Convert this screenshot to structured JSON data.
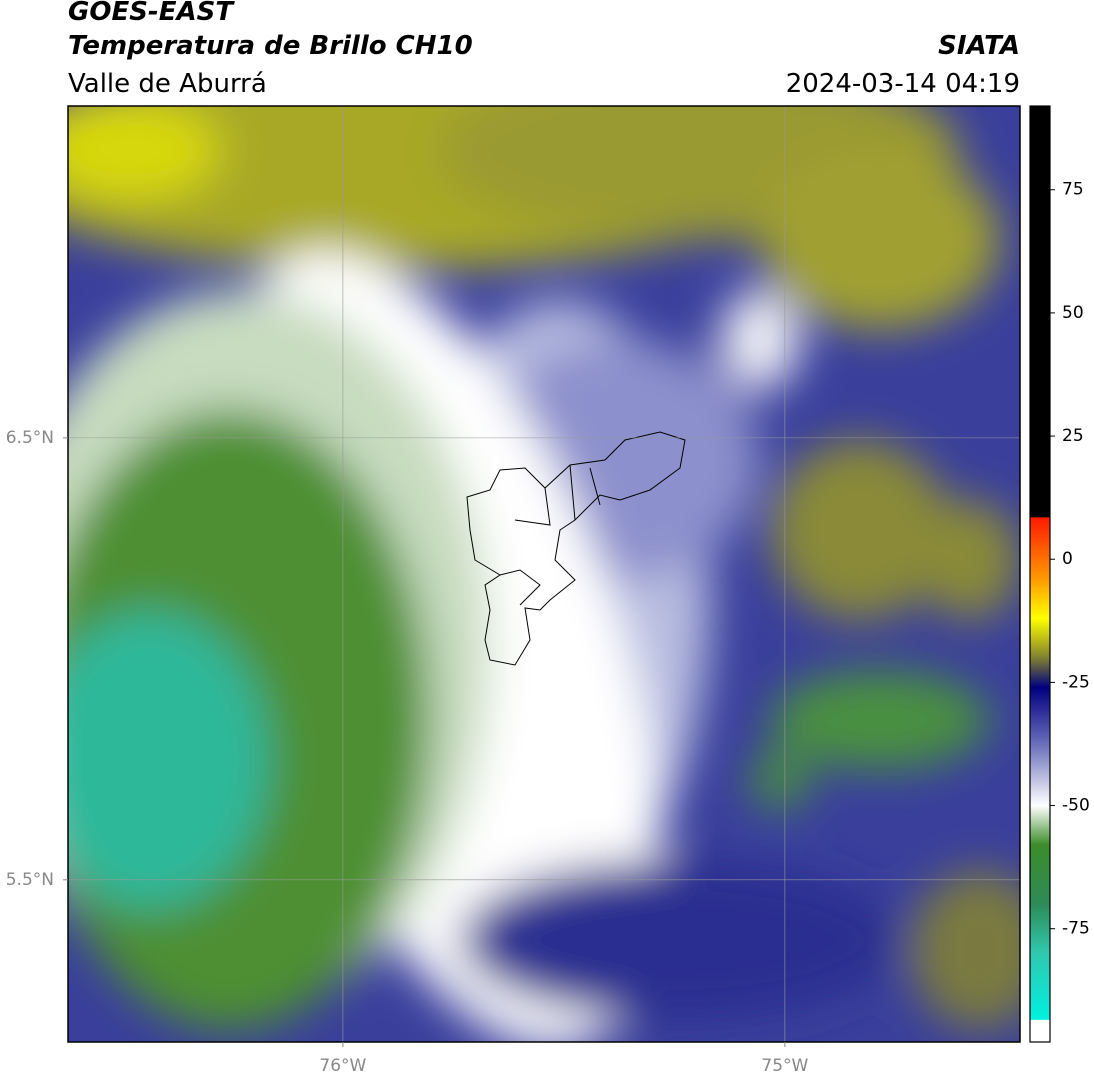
{
  "header": {
    "title": "GOES-EAST",
    "subtitle": "Temperatura de Brillo CH10",
    "region": "Valle de Aburrá",
    "source": "SIATA",
    "datetime": "2024-03-14 04:19"
  },
  "map": {
    "xlim": [
      -76.622,
      -74.468
    ],
    "ylim": [
      5.133,
      7.251
    ],
    "xticks": [
      {
        "value": -76,
        "label": "76°W"
      },
      {
        "value": -75,
        "label": "75°W"
      }
    ],
    "yticks": [
      {
        "value": 6.5,
        "label": "6.5°N"
      },
      {
        "value": 5.5,
        "label": "5.5°N"
      }
    ],
    "grid": true
  },
  "colorbar": {
    "lim": [
      -98,
      92
    ],
    "ticks": [
      75,
      50,
      25,
      0,
      -25,
      -50,
      -75
    ],
    "colormap": [
      {
        "value": 92,
        "color": "#000000"
      },
      {
        "value": 8.6,
        "color": "#000000"
      },
      {
        "value": 8.4,
        "color": "#ff1a00"
      },
      {
        "value": -4,
        "color": "#ff9900"
      },
      {
        "value": -12,
        "color": "#ffff00"
      },
      {
        "value": -20,
        "color": "#808030"
      },
      {
        "value": -26,
        "color": "#000080"
      },
      {
        "value": -38,
        "color": "#6f73bd"
      },
      {
        "value": -50,
        "color": "#ffffff"
      },
      {
        "value": -58,
        "color": "#3c8c2c"
      },
      {
        "value": -70,
        "color": "#2e8b57"
      },
      {
        "value": -80,
        "color": "#30c8b0"
      },
      {
        "value": -93.4,
        "color": "#00f0e0"
      },
      {
        "value": -93.6,
        "color": "#ffffff"
      },
      {
        "value": -98,
        "color": "#ffffff"
      }
    ]
  }
}
